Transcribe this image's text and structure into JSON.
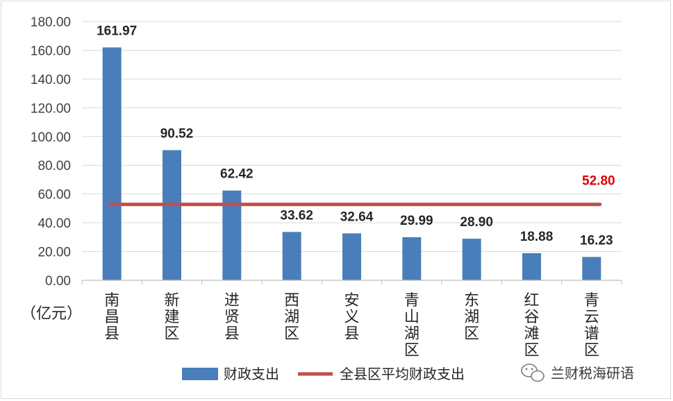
{
  "chart_data": {
    "type": "bar",
    "categories": [
      "南昌县",
      "新建区",
      "进贤县",
      "西湖区",
      "安义县",
      "青山湖区",
      "东湖区",
      "红谷滩区",
      "青云谱区"
    ],
    "series": [
      {
        "name": "财政支出",
        "values": [
          161.97,
          90.52,
          62.42,
          33.62,
          32.64,
          29.99,
          28.9,
          18.88,
          16.23
        ],
        "color": "#4a7ebb"
      }
    ],
    "average": {
      "name": "全县区平均财政支出",
      "value": 52.8,
      "label": "52.80",
      "color": "#c0504d",
      "label_color": "#e00000"
    },
    "ylabel": "（亿元）",
    "ylim": [
      0,
      180
    ],
    "yticks": [
      "0.00",
      "20.00",
      "40.00",
      "60.00",
      "80.00",
      "100.00",
      "120.00",
      "140.00",
      "160.00",
      "180.00"
    ],
    "value_labels": [
      "161.97",
      "90.52",
      "62.42",
      "33.62",
      "32.64",
      "29.99",
      "28.90",
      "18.88",
      "16.23"
    ],
    "grid": true,
    "legend_position": "bottom"
  },
  "watermark": {
    "text": "兰财税海研语",
    "icon": "wechat-icon"
  }
}
